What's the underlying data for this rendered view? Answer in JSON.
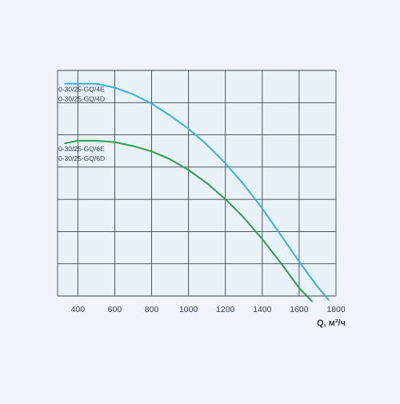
{
  "chart_data": {
    "type": "line",
    "xlabel": "Q, м³/ч",
    "x_ticks": [
      400,
      600,
      800,
      1000,
      1200,
      1400,
      1600,
      1800
    ],
    "xlim": [
      290,
      1800
    ],
    "ylim": [
      0,
      8.5
    ],
    "grid": true,
    "legend": "curve labels at left, inside plot",
    "series": [
      {
        "labels": [
          "0-30/25-GQ/4E",
          "0-30/25-GQ/4D"
        ],
        "color": "#35b0de",
        "x": [
          330,
          400,
          500,
          600,
          700,
          800,
          900,
          1000,
          1100,
          1200,
          1300,
          1400,
          1500,
          1600,
          1700,
          1760
        ],
        "y": [
          8.0,
          8.0,
          8.0,
          7.85,
          7.6,
          7.25,
          6.8,
          6.3,
          5.7,
          5.0,
          4.2,
          3.3,
          2.3,
          1.3,
          0.35,
          -0.15
        ]
      },
      {
        "labels": [
          "0-30/25-GQ/6E",
          "0-30/25-GQ/6D"
        ],
        "color": "#2e9e4a",
        "x": [
          330,
          400,
          500,
          600,
          700,
          800,
          900,
          1000,
          1100,
          1200,
          1300,
          1400,
          1500,
          1600,
          1670
        ],
        "y": [
          5.75,
          5.85,
          5.85,
          5.8,
          5.65,
          5.45,
          5.15,
          4.75,
          4.25,
          3.65,
          2.95,
          2.15,
          1.25,
          0.3,
          -0.2
        ]
      }
    ]
  }
}
